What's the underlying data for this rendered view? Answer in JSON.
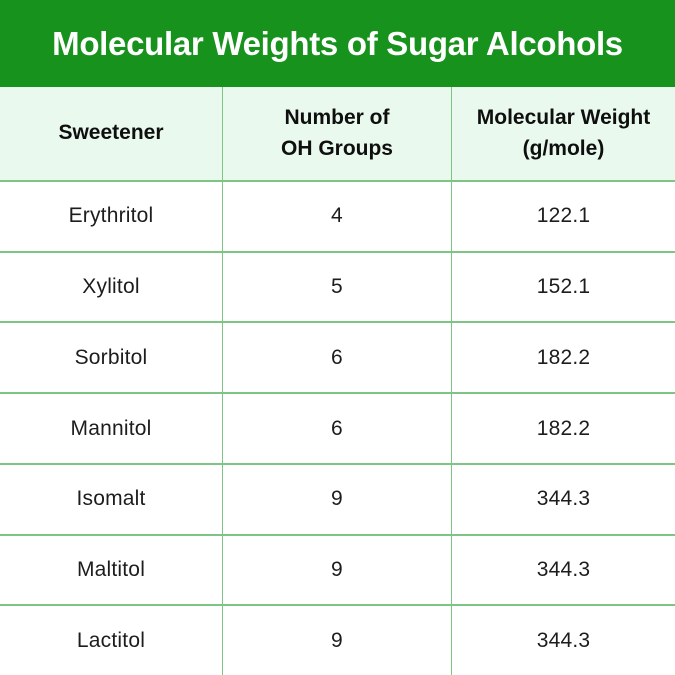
{
  "banner": {
    "title": "Molecular Weights of Sugar Alcohols"
  },
  "table": {
    "headers": [
      {
        "label": "Sweetener"
      },
      {
        "label": "Number of\nOH Groups"
      },
      {
        "label": "Molecular Weight\n(g/mole)"
      }
    ],
    "rows": [
      {
        "sweetener": "Erythritol",
        "oh_groups": "4",
        "molecular_weight": "122.1"
      },
      {
        "sweetener": "Xylitol",
        "oh_groups": "5",
        "molecular_weight": "152.1"
      },
      {
        "sweetener": "Sorbitol",
        "oh_groups": "6",
        "molecular_weight": "182.2"
      },
      {
        "sweetener": "Mannitol",
        "oh_groups": "6",
        "molecular_weight": "182.2"
      },
      {
        "sweetener": "Isomalt",
        "oh_groups": "9",
        "molecular_weight": "344.3"
      },
      {
        "sweetener": "Maltitol",
        "oh_groups": "9",
        "molecular_weight": "344.3"
      },
      {
        "sweetener": "Lactitol",
        "oh_groups": "9",
        "molecular_weight": "344.3"
      }
    ]
  },
  "colors": {
    "banner_green": "#17921D",
    "header_bg": "#E9F9ED",
    "grid_line": "#7CC582",
    "text_dark": "#1D1D1D",
    "title_white": "#FFFFFF"
  },
  "chart_data": {
    "type": "table",
    "title": "Molecular Weights of Sugar Alcohols",
    "columns": [
      "Sweetener",
      "Number of OH Groups",
      "Molecular Weight (g/mole)"
    ],
    "rows": [
      [
        "Erythritol",
        4,
        122.1
      ],
      [
        "Xylitol",
        5,
        152.1
      ],
      [
        "Sorbitol",
        6,
        182.2
      ],
      [
        "Mannitol",
        6,
        182.2
      ],
      [
        "Isomalt",
        9,
        344.3
      ],
      [
        "Maltitol",
        9,
        344.3
      ],
      [
        "Lactitol",
        9,
        344.3
      ]
    ]
  }
}
